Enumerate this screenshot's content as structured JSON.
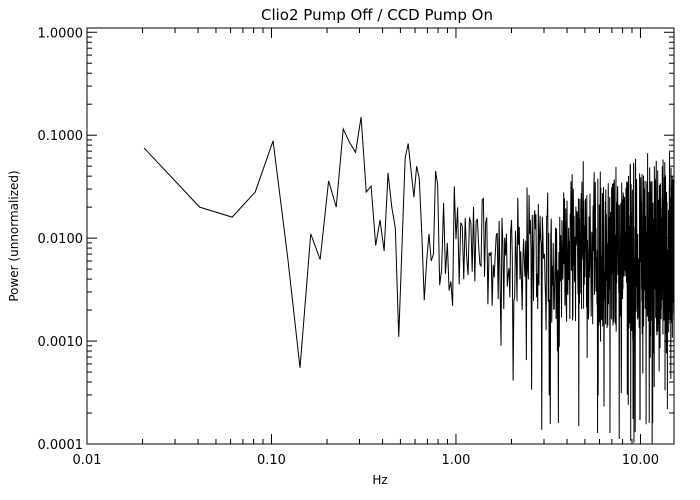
{
  "chart_data": {
    "type": "line",
    "title": "Clio2 Pump Off / CCD Pump On",
    "xlabel": "Hz",
    "ylabel": "Power (unnormalized)",
    "x_scale": "log",
    "y_scale": "log",
    "xlim": [
      0.01,
      15.2
    ],
    "ylim": [
      0.0001,
      1.1
    ],
    "x_ticks": [
      0.01,
      0.1,
      1,
      10
    ],
    "x_tick_labels": [
      "0.01",
      "0.10",
      "1.00",
      "10.00"
    ],
    "y_ticks": [
      0.0001,
      0.001,
      0.01,
      0.1,
      1
    ],
    "y_tick_labels": [
      "0.0001",
      "0.0010",
      "0.0100",
      "0.1000",
      "1.0000"
    ],
    "grid": false,
    "line_color": "#000000",
    "series": [
      {
        "x": [
          0.0204,
          0.0408,
          0.0612,
          0.0816,
          0.102,
          0.1224,
          0.1428,
          0.1632,
          0.1836,
          0.204,
          0.2244,
          0.2448,
          0.2652,
          0.2856,
          0.306,
          0.3264,
          0.3468,
          0.3672,
          0.3876,
          0.408,
          0.4284,
          0.4488,
          0.4692,
          0.4896,
          0.51,
          0.5304,
          0.5508,
          0.5712,
          0.5916,
          0.612,
          0.6324,
          0.6528,
          0.6732,
          0.6936,
          0.714,
          0.7344,
          0.7548,
          0.7752,
          0.7956,
          0.816,
          0.8364,
          0.8568,
          0.8772,
          0.8976,
          0.918,
          0.9384,
          0.9588,
          0.9792
        ],
        "y": [
          0.075,
          0.02,
          0.016,
          0.028,
          0.088,
          0.0065,
          0.00055,
          0.011,
          0.0062,
          0.036,
          0.02,
          0.115,
          0.085,
          0.068,
          0.15,
          0.028,
          0.032,
          0.0085,
          0.015,
          0.0075,
          0.043,
          0.02,
          0.0125,
          0.0011,
          0.0085,
          0.06,
          0.083,
          0.045,
          0.025,
          0.05,
          0.038,
          0.011,
          0.0025,
          0.006,
          0.011,
          0.006,
          0.007,
          0.045,
          0.033,
          0.0035,
          0.005,
          0.022,
          0.0045,
          0.009,
          0.0031,
          0.0038,
          0.0022,
          0.032
        ]
      }
    ]
  }
}
